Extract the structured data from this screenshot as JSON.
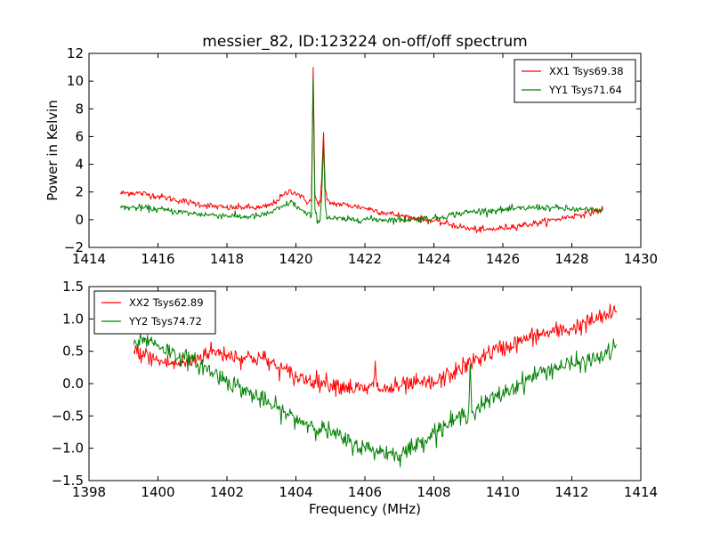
{
  "title": "messier_82, ID:123224 on-off/off spectrum",
  "chart_data": [
    {
      "type": "line",
      "title": "messier_82, ID:123224 on-off/off spectrum",
      "xlabel": "",
      "ylabel": "Power in Kelvin",
      "xlim": [
        1414,
        1430
      ],
      "ylim": [
        -2,
        12
      ],
      "x_ticks": [
        "1414",
        "1416",
        "1418",
        "1420",
        "1422",
        "1424",
        "1426",
        "1428",
        "1430"
      ],
      "y_ticks": [
        "−2",
        "0",
        "2",
        "4",
        "6",
        "8",
        "10",
        "12"
      ],
      "x_tick_values": [
        1414,
        1416,
        1418,
        1420,
        1422,
        1424,
        1426,
        1428,
        1430
      ],
      "y_tick_values": [
        -2,
        0,
        2,
        4,
        6,
        8,
        10,
        12
      ],
      "legend_position": "top-right",
      "grid": false,
      "noise": 0.12,
      "series": [
        {
          "name": "XX1 Tsys69.38",
          "color": "#ff0000",
          "x": [
            1414.9,
            1415.2,
            1415.5,
            1416.0,
            1416.5,
            1417.0,
            1417.5,
            1418.0,
            1418.5,
            1419.0,
            1419.3,
            1419.6,
            1419.85,
            1420.1,
            1420.3,
            1420.45,
            1420.5,
            1420.55,
            1420.62,
            1420.7,
            1420.75,
            1420.8,
            1420.85,
            1420.9,
            1421.0,
            1421.5,
            1422.0,
            1422.5,
            1423.0,
            1423.5,
            1424.0,
            1424.5,
            1425.0,
            1425.5,
            1426.0,
            1426.5,
            1427.0,
            1427.5,
            1428.0,
            1428.5,
            1428.9
          ],
          "values": [
            1.9,
            1.95,
            1.9,
            1.7,
            1.45,
            1.2,
            1.0,
            0.85,
            0.9,
            0.85,
            1.1,
            1.7,
            2.1,
            1.8,
            1.3,
            1.4,
            11.0,
            1.8,
            1.2,
            1.25,
            3.0,
            6.3,
            2.2,
            1.4,
            1.2,
            1.05,
            0.85,
            0.55,
            0.3,
            0.1,
            -0.1,
            -0.35,
            -0.65,
            -0.75,
            -0.6,
            -0.4,
            -0.25,
            0.0,
            0.25,
            0.5,
            0.75
          ]
        },
        {
          "name": "YY1 Tsys71.64",
          "color": "#008000",
          "x": [
            1414.9,
            1415.5,
            1416.0,
            1416.5,
            1417.0,
            1417.5,
            1418.0,
            1418.5,
            1419.0,
            1419.3,
            1419.6,
            1419.85,
            1420.1,
            1420.3,
            1420.45,
            1420.5,
            1420.55,
            1420.62,
            1420.7,
            1420.75,
            1420.8,
            1420.85,
            1420.9,
            1421.0,
            1421.5,
            1422.0,
            1422.5,
            1423.0,
            1423.5,
            1424.0,
            1424.5,
            1425.0,
            1425.5,
            1426.0,
            1426.5,
            1427.0,
            1427.5,
            1428.0,
            1428.5,
            1428.9
          ],
          "values": [
            0.9,
            0.85,
            0.75,
            0.6,
            0.45,
            0.35,
            0.3,
            0.2,
            0.3,
            0.55,
            0.9,
            1.3,
            0.8,
            0.4,
            0.3,
            10.2,
            0.8,
            0.0,
            -0.1,
            2.0,
            5.6,
            1.0,
            0.2,
            0.1,
            0.0,
            0.05,
            0.0,
            0.0,
            0.05,
            0.1,
            0.35,
            0.55,
            0.65,
            0.7,
            0.8,
            0.9,
            0.85,
            0.75,
            0.7,
            0.65
          ]
        }
      ]
    },
    {
      "type": "line",
      "title": "",
      "xlabel": "Frequency (MHz)",
      "ylabel": "",
      "xlim": [
        1398,
        1414
      ],
      "ylim": [
        -1.5,
        1.5
      ],
      "x_ticks": [
        "1398",
        "1400",
        "1402",
        "1404",
        "1406",
        "1408",
        "1410",
        "1412",
        "1414"
      ],
      "y_ticks": [
        "−1.5",
        "−1.0",
        "−0.5",
        "0.0",
        "0.5",
        "1.0",
        "1.5"
      ],
      "x_tick_values": [
        1398,
        1400,
        1402,
        1404,
        1406,
        1408,
        1410,
        1412,
        1414
      ],
      "y_tick_values": [
        -1.5,
        -1.0,
        -0.5,
        0.0,
        0.5,
        1.0,
        1.5
      ],
      "legend_position": "top-left",
      "grid": false,
      "noise": 0.07,
      "series": [
        {
          "name": "XX2 Tsys62.89",
          "color": "#ff0000",
          "x": [
            1399.3,
            1399.6,
            1400.0,
            1400.5,
            1401.0,
            1401.5,
            1402.0,
            1402.5,
            1403.0,
            1403.5,
            1404.0,
            1404.5,
            1405.0,
            1405.5,
            1406.0,
            1406.25,
            1406.3,
            1406.35,
            1406.5,
            1407.0,
            1407.5,
            1408.0,
            1408.5,
            1409.0,
            1409.5,
            1410.0,
            1410.5,
            1411.0,
            1411.5,
            1412.0,
            1412.5,
            1413.0,
            1413.3
          ],
          "values": [
            0.5,
            0.45,
            0.35,
            0.3,
            0.35,
            0.5,
            0.45,
            0.4,
            0.4,
            0.25,
            0.1,
            0.05,
            0.0,
            -0.05,
            -0.1,
            -0.05,
            0.35,
            -0.05,
            -0.1,
            -0.05,
            0.0,
            0.0,
            0.15,
            0.3,
            0.45,
            0.55,
            0.65,
            0.75,
            0.8,
            0.85,
            0.95,
            1.05,
            1.1
          ]
        },
        {
          "name": "YY2 Tsys74.72",
          "color": "#008000",
          "x": [
            1399.3,
            1399.6,
            1400.0,
            1400.5,
            1401.0,
            1401.5,
            1402.0,
            1402.5,
            1403.0,
            1403.5,
            1404.0,
            1404.5,
            1405.0,
            1405.5,
            1406.0,
            1406.5,
            1407.0,
            1407.5,
            1408.0,
            1408.5,
            1409.0,
            1409.05,
            1409.1,
            1409.5,
            1410.0,
            1410.5,
            1411.0,
            1411.5,
            1412.0,
            1412.5,
            1413.0,
            1413.3
          ],
          "values": [
            0.6,
            0.7,
            0.6,
            0.45,
            0.35,
            0.2,
            0.05,
            -0.1,
            -0.25,
            -0.4,
            -0.55,
            -0.65,
            -0.75,
            -0.9,
            -1.0,
            -1.05,
            -1.1,
            -0.95,
            -0.75,
            -0.6,
            -0.45,
            0.3,
            -0.45,
            -0.3,
            -0.15,
            0.0,
            0.15,
            0.25,
            0.3,
            0.35,
            0.45,
            0.6
          ]
        }
      ]
    }
  ]
}
